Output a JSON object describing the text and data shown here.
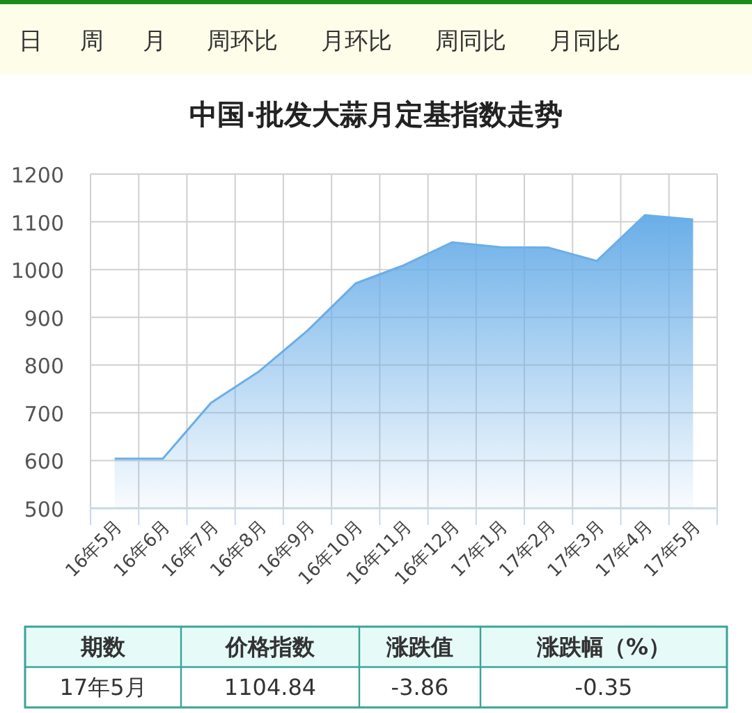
{
  "chart_data": [
    {
      "type": "other",
      "annotations": [
        "日",
        "周",
        "月",
        "周环比",
        "月环比",
        "周同比",
        "月同比"
      ]
    },
    {
      "type": "area",
      "title": "中国·批发大蒜月定基指数走势",
      "categories": [
        "16年5月",
        "16年6月",
        "16年7月",
        "16年8月",
        "16年9月",
        "16年10月",
        "16年11月",
        "16年12月",
        "17年1月",
        "17年2月",
        "17年3月",
        "17年4月",
        "17年5月"
      ],
      "values": [
        604,
        604,
        721,
        787,
        872,
        971,
        1009,
        1057,
        1047,
        1046,
        1018,
        1114,
        1105
      ],
      "color": "#6aaee8",
      "ylim": [
        500,
        1200
      ],
      "yticks": [
        500,
        600,
        700,
        800,
        900,
        1000,
        1100,
        1200
      ],
      "grid": true
    },
    {
      "type": "other",
      "annotations": [
        "期数",
        "价格指数",
        "涨跌值",
        "涨跌幅（%）",
        "17年5月",
        "1104.84",
        "-3.86",
        "-0.35"
      ]
    }
  ]
}
